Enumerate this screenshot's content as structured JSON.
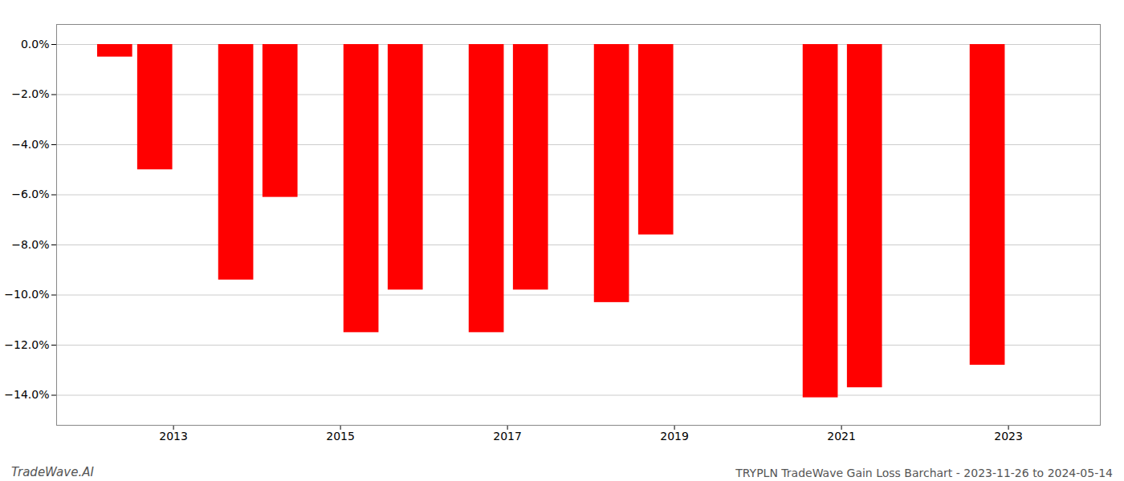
{
  "chart_data": {
    "type": "bar",
    "title": "TRYPLN TradeWave Gain Loss Barchart - 2023-11-26 to 2024-05-14",
    "annotations": [
      "TradeWave.AI"
    ],
    "x": [
      2012.3,
      2012.78,
      2013.75,
      2014.28,
      2015.25,
      2015.78,
      2016.75,
      2017.28,
      2018.25,
      2018.78,
      2020.75,
      2021.28,
      2022.75
    ],
    "values": [
      -0.5,
      -5.0,
      -9.4,
      -6.1,
      -11.5,
      -9.8,
      -11.5,
      -9.8,
      -10.3,
      -7.6,
      -14.1,
      -13.7,
      -12.8
    ],
    "color": "#ff0000",
    "xlim": [
      2011.6,
      2024.1
    ],
    "xticks": [
      2013,
      2015,
      2017,
      2019,
      2021,
      2023
    ],
    "ylim": [
      -15.2,
      0.8
    ],
    "yticks": [
      {
        "value": 0.0,
        "label": "0.0%"
      },
      {
        "value": -2.0,
        "label": "−2.0%"
      },
      {
        "value": -4.0,
        "label": "−4.0%"
      },
      {
        "value": -6.0,
        "label": "−6.0%"
      },
      {
        "value": -8.0,
        "label": "−8.0%"
      },
      {
        "value": -10.0,
        "label": "−10.0%"
      },
      {
        "value": -12.0,
        "label": "−12.0%"
      },
      {
        "value": -14.0,
        "label": "−14.0%"
      }
    ],
    "grid": true
  }
}
